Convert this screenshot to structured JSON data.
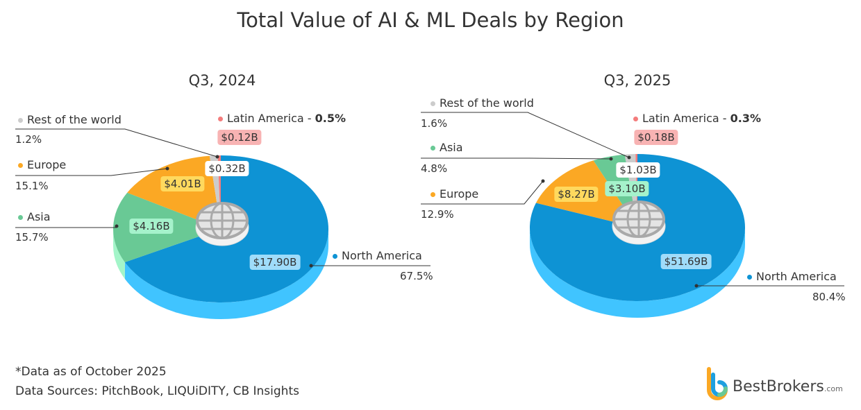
{
  "title": "Total Value of AI & ML Deals by Region",
  "chart_data": [
    {
      "type": "pie",
      "title": "Q3, 2024",
      "slices": [
        {
          "label": "North America",
          "value": 17.9,
          "value_label": "$17.90B",
          "percent": "67.5%",
          "color": "#0e93d4",
          "side": "#40c4ff",
          "badge": "#9fdcfa"
        },
        {
          "label": "Asia",
          "value": 4.16,
          "value_label": "$4.16B",
          "percent": "15.7%",
          "color": "#69c995",
          "side": "#a3f5c9",
          "badge": "#a5f2cb"
        },
        {
          "label": "Europe",
          "value": 4.01,
          "value_label": "$4.01B",
          "percent": "15.1%",
          "color": "#fba824",
          "side": "#ffc24d",
          "badge": "#ffd95e"
        },
        {
          "label": "Rest of the world",
          "value": 0.32,
          "value_label": "$0.32B",
          "percent": "1.2%",
          "color": "#cccccc",
          "side": "#e0e0e0",
          "badge": "#ffffff"
        },
        {
          "label": "Latin America",
          "value": 0.12,
          "value_label": "$0.12B",
          "percent": "0.5%",
          "color": "#f47c7c",
          "side": "#f7a0a0",
          "badge": "#f8b3b3"
        }
      ]
    },
    {
      "type": "pie",
      "title": "Q3, 2025",
      "slices": [
        {
          "label": "North America",
          "value": 51.69,
          "value_label": "$51.69B",
          "percent": "80.4%",
          "color": "#0e93d4",
          "side": "#40c4ff",
          "badge": "#9fdcfa"
        },
        {
          "label": "Europe",
          "value": 8.27,
          "value_label": "$8.27B",
          "percent": "12.9%",
          "color": "#fba824",
          "side": "#ffc24d",
          "badge": "#ffd95e"
        },
        {
          "label": "Asia",
          "value": 3.1,
          "value_label": "$3.10B",
          "percent": "4.8%",
          "color": "#69c995",
          "side": "#a3f5c9",
          "badge": "#a5f2cb"
        },
        {
          "label": "Rest of the world",
          "value": 1.03,
          "value_label": "$1.03B",
          "percent": "1.6%",
          "color": "#cccccc",
          "side": "#e0e0e0",
          "badge": "#ffffff"
        },
        {
          "label": "Latin America",
          "value": 0.18,
          "value_label": "$0.18B",
          "percent": "0.3%",
          "color": "#f47c7c",
          "side": "#f7a0a0",
          "badge": "#f8b3b3"
        }
      ]
    }
  ],
  "footnote": "*Data as of October 2025",
  "sources": "Data Sources: PitchBook, LIQUiDITY, CB Insights",
  "brand": {
    "name": "BestBrokers",
    "tld": ".com"
  }
}
